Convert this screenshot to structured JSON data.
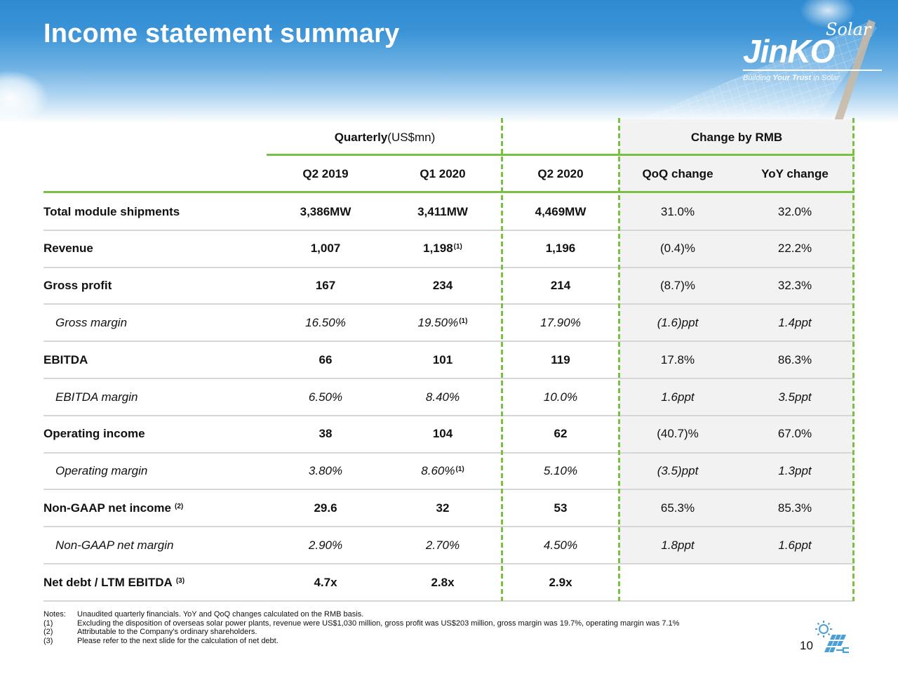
{
  "header": {
    "title": "Income statement summary",
    "logo": {
      "top_word": "Solar",
      "brand": "JinKO",
      "tagline_pre": "Building ",
      "tagline_bold": "Your Trust",
      "tagline_post": " in Solar"
    }
  },
  "table": {
    "group_headers": {
      "quarterly_bold": "Quarterly",
      "quarterly_unit": " (US$mn)",
      "change": "Change by RMB"
    },
    "columns": [
      "Q2 2019",
      "Q1 2020",
      "Q2 2020",
      "QoQ change",
      "YoY change"
    ],
    "rows": [
      {
        "label": "Total module shipments",
        "sup": "",
        "style": "bold",
        "values": [
          "3,386MW",
          "3,411MW",
          "4,469MW",
          "31.0%",
          "32.0%"
        ],
        "value_sups": [
          "",
          "",
          "",
          "",
          ""
        ]
      },
      {
        "label": "Revenue",
        "sup": "",
        "style": "bold",
        "values": [
          "1,007",
          "1,198",
          "1,196",
          "(0.4)%",
          "22.2%"
        ],
        "value_sups": [
          "",
          "(1)",
          "",
          "",
          ""
        ]
      },
      {
        "label": "Gross profit",
        "sup": "",
        "style": "bold",
        "values": [
          "167",
          "234",
          "214",
          "(8.7)%",
          "32.3%"
        ],
        "value_sups": [
          "",
          "",
          "",
          "",
          ""
        ]
      },
      {
        "label": "Gross margin",
        "sup": "",
        "style": "italic",
        "values": [
          "16.50%",
          "19.50%",
          "17.90%",
          "(1.6)ppt",
          "1.4ppt"
        ],
        "value_sups": [
          "",
          "(1)",
          "",
          "",
          ""
        ]
      },
      {
        "label": "EBITDA",
        "sup": "",
        "style": "bold",
        "values": [
          "66",
          "101",
          "119",
          "17.8%",
          "86.3%"
        ],
        "value_sups": [
          "",
          "",
          "",
          "",
          ""
        ]
      },
      {
        "label": "EBITDA margin",
        "sup": "",
        "style": "italic",
        "values": [
          "6.50%",
          "8.40%",
          "10.0%",
          "1.6ppt",
          "3.5ppt"
        ],
        "value_sups": [
          "",
          "",
          "",
          "",
          ""
        ]
      },
      {
        "label": "Operating income",
        "sup": "",
        "style": "bold",
        "values": [
          "38",
          "104",
          "62",
          "(40.7)%",
          "67.0%"
        ],
        "value_sups": [
          "",
          "",
          "",
          "",
          ""
        ]
      },
      {
        "label": "Operating margin",
        "sup": "",
        "style": "italic",
        "values": [
          "3.80%",
          "8.60%",
          "5.10%",
          "(3.5)ppt",
          "1.3ppt"
        ],
        "value_sups": [
          "",
          "(1)",
          "",
          "",
          ""
        ]
      },
      {
        "label": "Non-GAAP net income",
        "sup": "(2)",
        "style": "bold",
        "values": [
          "29.6",
          "32",
          "53",
          "65.3%",
          "85.3%"
        ],
        "value_sups": [
          "",
          "",
          "",
          "",
          ""
        ]
      },
      {
        "label": "Non-GAAP net margin",
        "sup": "",
        "style": "italic",
        "values": [
          "2.90%",
          "2.70%",
          "4.50%",
          "1.8ppt",
          "1.6ppt"
        ],
        "value_sups": [
          "",
          "",
          "",
          "",
          ""
        ]
      },
      {
        "label": "Net debt / LTM EBITDA",
        "sup": "(3)",
        "style": "bold",
        "values": [
          "4.7x",
          "2.8x",
          "2.9x",
          "",
          ""
        ],
        "value_sups": [
          "",
          "",
          "",
          "",
          ""
        ]
      }
    ]
  },
  "notes": [
    {
      "key": "Notes:",
      "text": "Unaudited quarterly financials. YoY and QoQ changes calculated on the RMB basis."
    },
    {
      "key": "(1)",
      "text": "Excluding the disposition of overseas solar power plants, revenue were US$1,030 million, gross profit was US$203 million, gross margin was 19.7%, operating margin was 7.1%"
    },
    {
      "key": "(2)",
      "text": "Attributable to the Company's ordinary shareholders."
    },
    {
      "key": "(3)",
      "text": "Please refer to the next slide for the calculation of net debt."
    }
  ],
  "footer": {
    "page_number": "10",
    "icon": "solar-panel-sun-icon"
  },
  "colors": {
    "accent_green": "#7ac143",
    "shade_gray": "#f2f2f2",
    "divider_gray": "#d6d6d6",
    "icon_blue": "#4a9fd8"
  }
}
